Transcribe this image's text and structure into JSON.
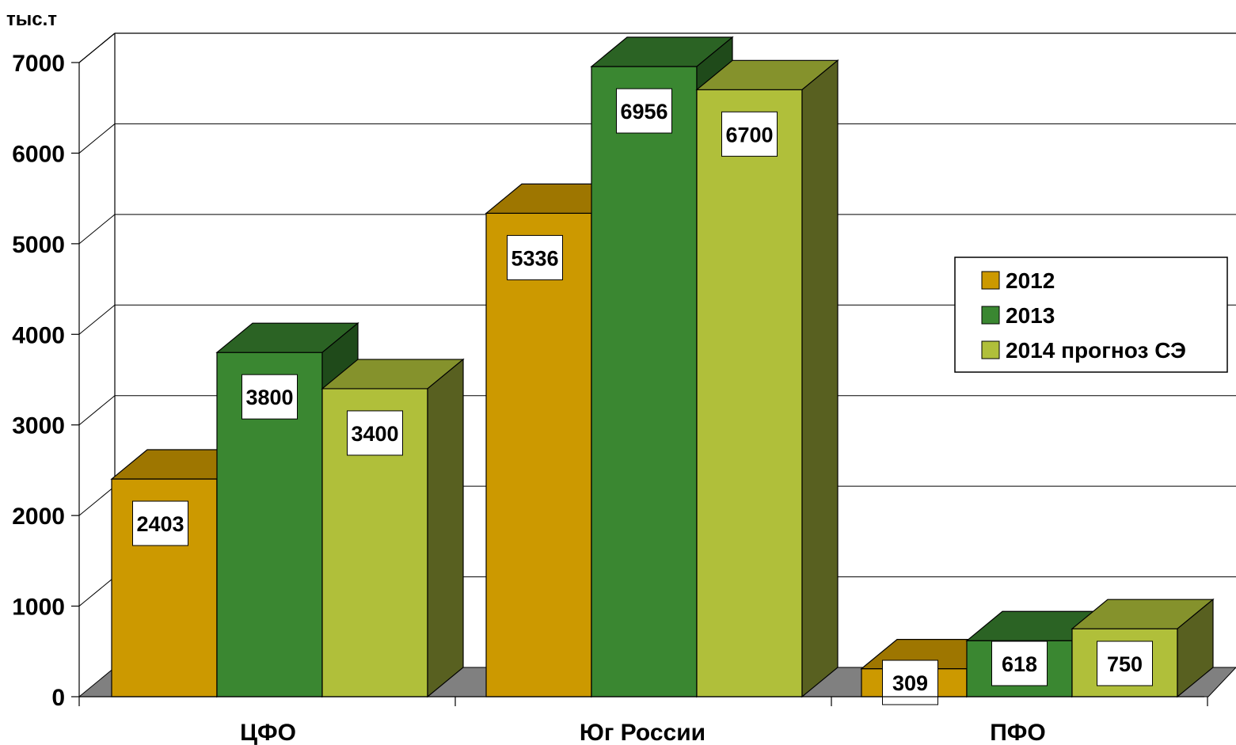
{
  "chart_data": {
    "type": "bar",
    "ylabel": "тыс.т",
    "xlabel": "",
    "title": "",
    "ylim": [
      0,
      7000
    ],
    "yticks": [
      0,
      1000,
      2000,
      3000,
      4000,
      5000,
      6000,
      7000
    ],
    "categories": [
      "ЦФО",
      "Юг России",
      "ПФО"
    ],
    "grid": true,
    "three_d": true,
    "legend_position": "right",
    "series": [
      {
        "name": "2012",
        "values": [
          2403,
          5336,
          309
        ],
        "colors": {
          "front": "#CC9900",
          "top": "#9E7600",
          "side": "#7A5C00"
        }
      },
      {
        "name": "2013",
        "values": [
          3800,
          6956,
          618
        ],
        "colors": {
          "front": "#3A8731",
          "top": "#2B6324",
          "side": "#1F4A1A"
        }
      },
      {
        "name": "2014 прогноз СЭ",
        "values": [
          3400,
          6700,
          750
        ],
        "colors": {
          "front": "#B0BF3A",
          "top": "#85922C",
          "side": "#586020"
        }
      }
    ]
  }
}
